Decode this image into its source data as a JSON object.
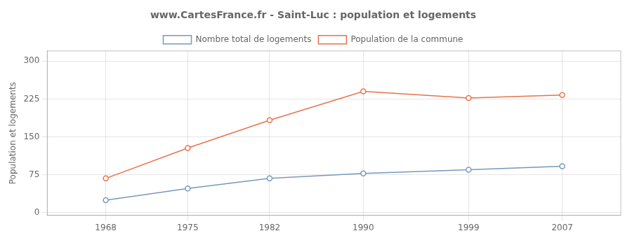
{
  "chart_data": {
    "type": "line",
    "title": "www.CartesFrance.fr - Saint-Luc : population et logements",
    "ylabel": "Population et logements",
    "x": [
      1968,
      1975,
      1982,
      1990,
      1999,
      2007
    ],
    "series": [
      {
        "name": "Nombre total de logements",
        "color": "#7799bb",
        "values": [
          25,
          48,
          68,
          78,
          85,
          92
        ]
      },
      {
        "name": "Population de la commune",
        "color": "#e8724a",
        "values": [
          68,
          128,
          183,
          240,
          227,
          233
        ]
      }
    ],
    "xlim": [
      1963,
      2012
    ],
    "xticks": [
      1968,
      1975,
      1982,
      1990,
      1999,
      2007
    ],
    "ylim": [
      -5,
      320
    ],
    "yticks": [
      0,
      75,
      150,
      225,
      300
    ],
    "grid": true,
    "legend": "top",
    "marker": "circle"
  }
}
